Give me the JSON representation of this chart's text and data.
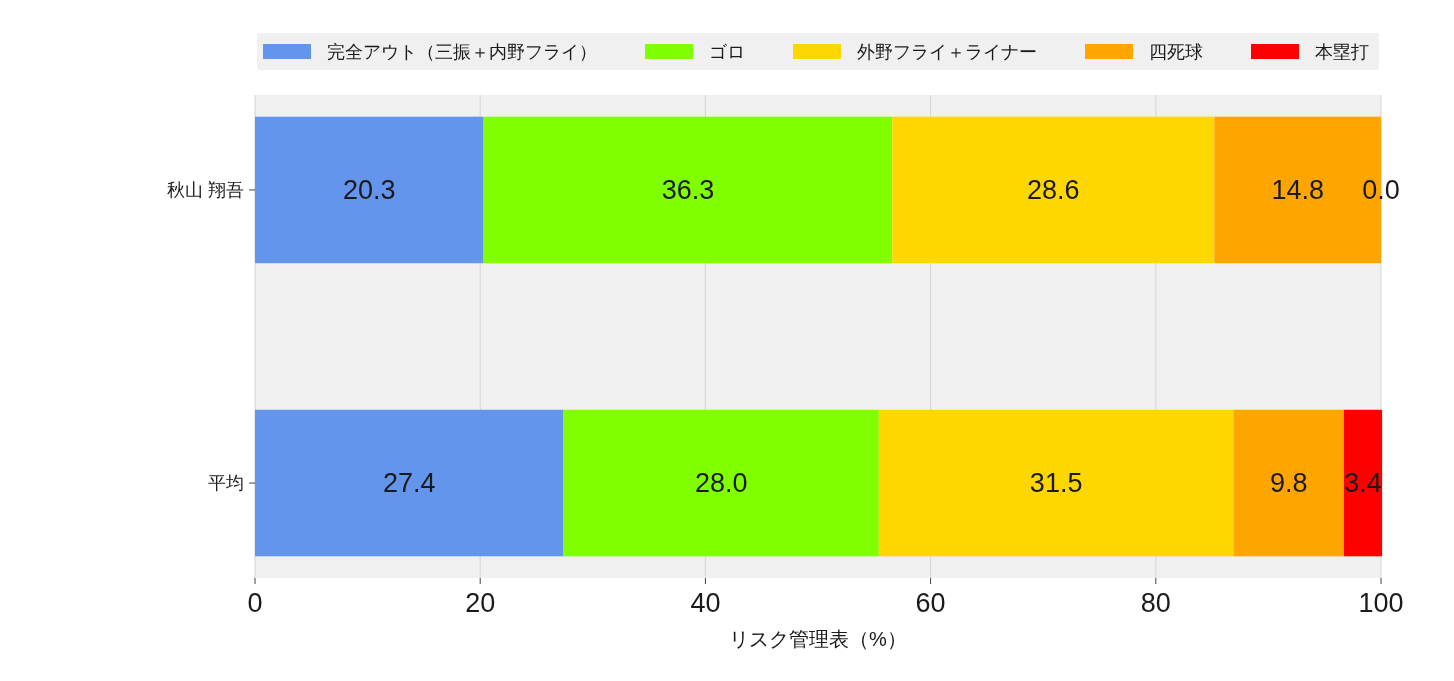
{
  "chart_data": {
    "type": "bar",
    "orientation": "horizontal",
    "stacked": true,
    "categories": [
      "秋山 翔吾",
      "平均"
    ],
    "series": [
      {
        "name": "完全アウト（三振＋内野フライ）",
        "color": "#6495ed",
        "values": [
          20.3,
          27.4
        ],
        "value_labels": [
          "20.3",
          "27.4"
        ]
      },
      {
        "name": "ゴロ",
        "color": "#7fff00",
        "values": [
          36.3,
          28.0
        ],
        "value_labels": [
          "36.3",
          "28.0"
        ]
      },
      {
        "name": "外野フライ＋ライナー",
        "color": "#ffd700",
        "values": [
          28.6,
          31.5
        ],
        "value_labels": [
          "28.6",
          "31.5"
        ]
      },
      {
        "name": "四死球",
        "color": "#ffa500",
        "values": [
          14.8,
          9.8
        ],
        "value_labels": [
          "14.8",
          "9.8"
        ]
      },
      {
        "name": "本塁打",
        "color": "#ff0000",
        "values": [
          0.0,
          3.4
        ],
        "value_labels": [
          "0.0",
          "3.4"
        ]
      }
    ],
    "xlabel": "リスク管理表（%）",
    "xlim": [
      0,
      100
    ],
    "xticks": [
      0,
      20,
      40,
      60,
      80,
      100
    ],
    "grid": "x",
    "legend": "top"
  }
}
